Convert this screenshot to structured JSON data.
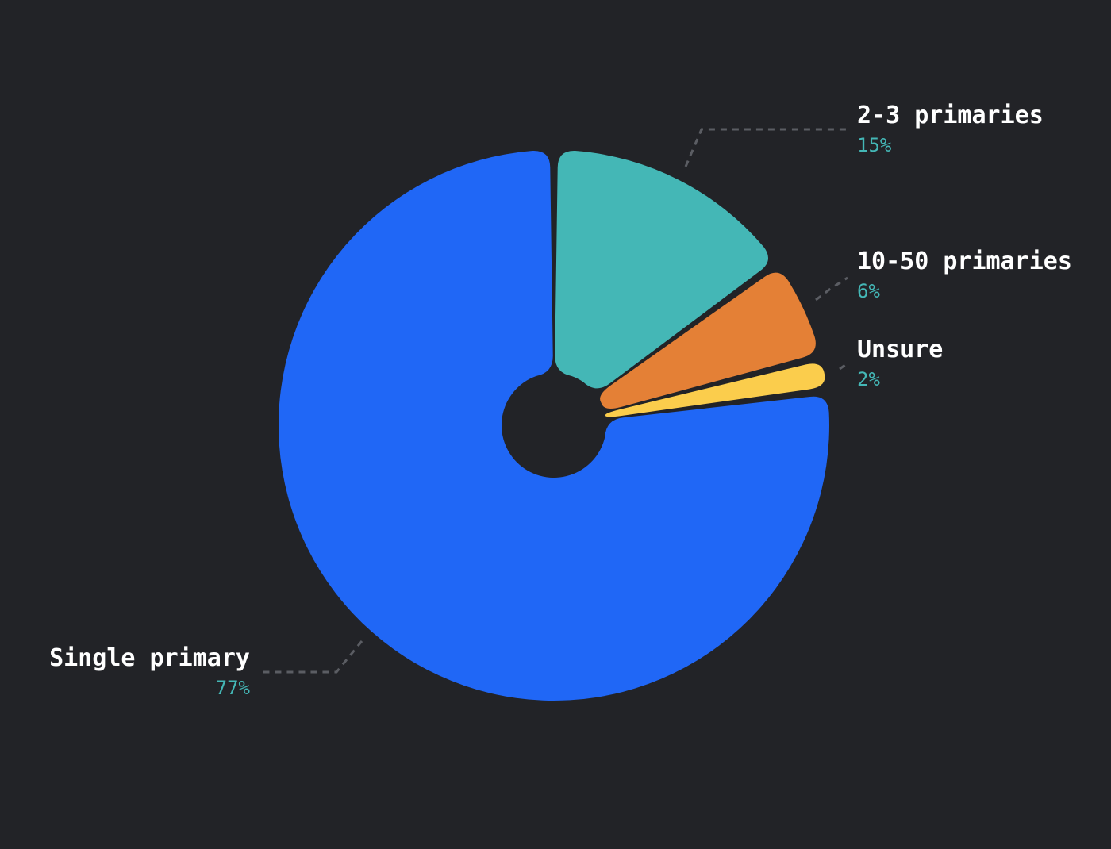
{
  "chart_data": {
    "type": "pie",
    "slices": [
      {
        "label": "2-3 primaries",
        "value": 15,
        "value_label": "15%",
        "color": "#44b7b6"
      },
      {
        "label": "10-50 primaries",
        "value": 6,
        "value_label": "6%",
        "color": "#e48036"
      },
      {
        "label": "Unsure",
        "value": 2,
        "value_label": "2%",
        "color": "#fbcd4c"
      },
      {
        "label": "Single primary",
        "value": 77,
        "value_label": "77%",
        "color": "#2067f6"
      }
    ],
    "legend": "none",
    "grid": false
  },
  "colors": {
    "background": "#222327",
    "label_text": "#ffffff",
    "percent_text": "#44b7b6",
    "leader_line": "#5b5d63"
  }
}
